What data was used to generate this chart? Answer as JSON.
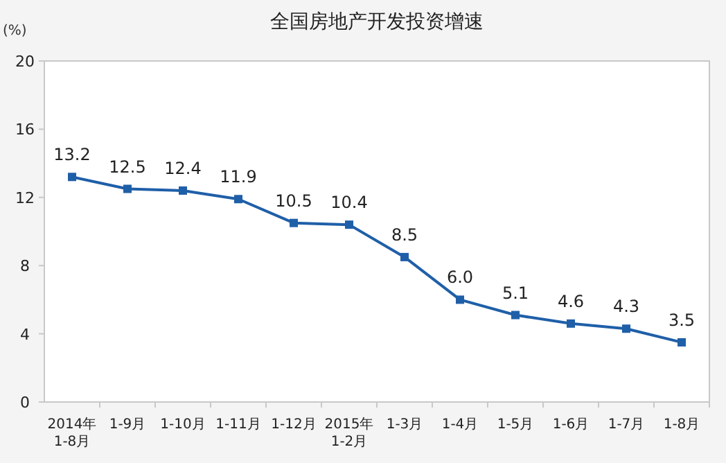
{
  "chart_data": {
    "type": "line",
    "title": "全国房地产开发投资增速",
    "ylabel": "(%)",
    "categories": [
      "2014年\n1-8月",
      "1-9月",
      "1-10月",
      "1-11月",
      "1-12月",
      "2015年\n1-2月",
      "1-3月",
      "1-4月",
      "1-5月",
      "1-6月",
      "1-7月",
      "1-8月"
    ],
    "series": [
      {
        "color": "#1f5fa8",
        "values": [
          13.2,
          12.5,
          12.4,
          11.9,
          10.5,
          10.4,
          8.5,
          6.0,
          5.1,
          4.6,
          4.3,
          3.5
        ],
        "value_labels": [
          "13.2",
          "12.5",
          "12.4",
          "11.9",
          "10.5",
          "10.4",
          "8.5",
          "6.0",
          "5.1",
          "4.6",
          "4.3",
          "3.5"
        ]
      }
    ],
    "ylim": [
      0,
      20
    ],
    "yticks": [
      0,
      4,
      8,
      12,
      16,
      20
    ],
    "marker": "square",
    "grid": false
  }
}
